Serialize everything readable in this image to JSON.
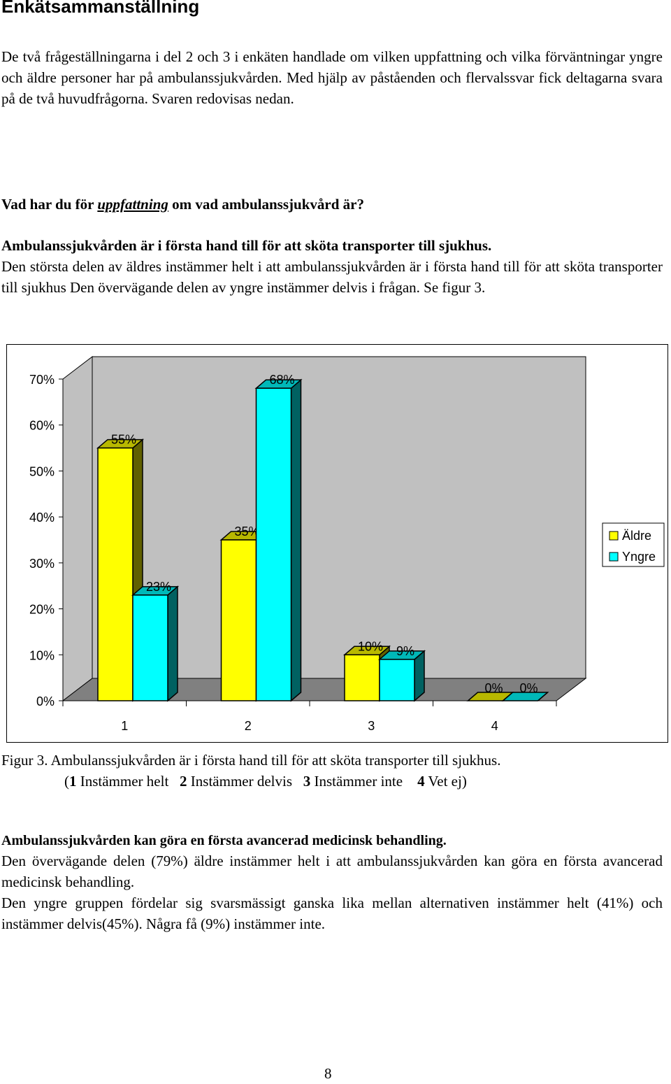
{
  "heading": "Enkätsammanställning",
  "intro": "De två frågeställningarna i del 2 och 3 i enkäten handlade om vilken uppfattning och vilka förväntningar yngre och äldre personer har på ambulanssjukvården. Med hjälp av påståenden och flervalssvar fick deltagarna svara på de två huvudfrågorna. Svaren redovisas nedan.",
  "question": {
    "before": "Vad har du för ",
    "emphasis": "uppfattning",
    "after": " om vad ambulanssjukvård är?"
  },
  "section1": {
    "statement": "Ambulanssjukvården är i första hand till för att sköta transporter till sjukhus.",
    "body": "Den största delen av äldres instämmer helt i att ambulanssjukvården är i första hand till för att sköta transporter till sjukhus Den övervägande delen av yngre instämmer delvis i frågan. Se figur 3."
  },
  "chart_data": {
    "type": "bar",
    "categories": [
      "1",
      "2",
      "3",
      "4"
    ],
    "series": [
      {
        "name": "Äldre",
        "values": [
          55,
          35,
          10,
          0
        ],
        "labels": [
          "55%",
          "35%",
          "10%",
          "0%"
        ],
        "color": "#ffff00"
      },
      {
        "name": "Yngre",
        "values": [
          23,
          68,
          9,
          0
        ],
        "labels": [
          "23%",
          "68%",
          "9%",
          "0%"
        ],
        "color": "#00ffff"
      }
    ],
    "y_ticks": [
      "0%",
      "10%",
      "20%",
      "30%",
      "40%",
      "50%",
      "60%",
      "70%"
    ],
    "ylim": [
      0,
      70
    ],
    "grid": false,
    "legend": "right",
    "wall_color": "#c0c0c0",
    "floor_color": "#808080"
  },
  "figure_caption": {
    "label": "Figur 3.",
    "text": " Ambulanssjukvården är i första hand till för att sköta transporter till sjukhus.",
    "legend_items": [
      {
        "num": "1",
        "text": " Instämmer helt"
      },
      {
        "num": "2",
        "text": " Instämmer delvis"
      },
      {
        "num": "3",
        "text": " Instämmer inte"
      },
      {
        "num": "4",
        "text": " Vet ej)"
      }
    ],
    "open_paren": "("
  },
  "section2": {
    "statement": "Ambulanssjukvården kan göra en första avancerad medicinsk behandling.",
    "para1": "Den övervägande delen (79%) äldre instämmer helt i att ambulanssjukvården kan göra en första avancerad medicinsk behandling.",
    "para2": "Den yngre gruppen fördelar sig svarsmässigt ganska lika mellan alternativen instämmer helt (41%) och instämmer delvis(45%).  Några få (9%) instämmer inte."
  },
  "page_number": "8"
}
